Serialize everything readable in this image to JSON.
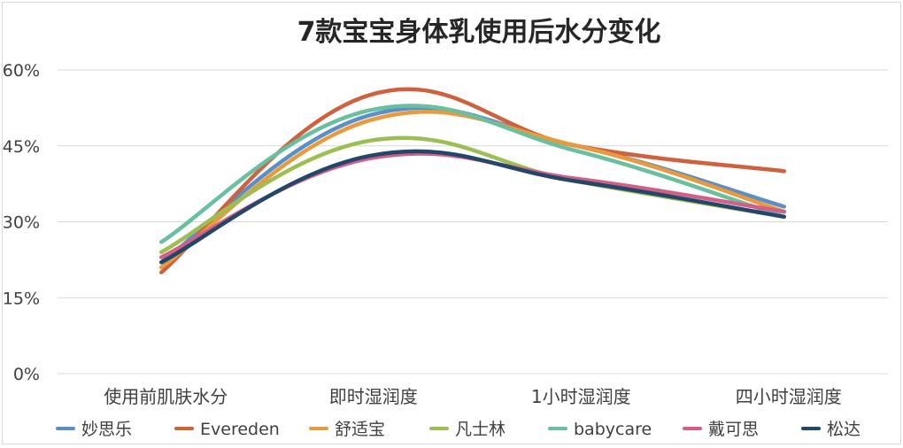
{
  "chart_data": {
    "type": "line",
    "title": "7款宝宝身体乳使用后水分变化",
    "xlabel": "",
    "ylabel": "",
    "categories": [
      "使用前肌肤水分",
      "即时湿润度",
      "1小时湿润度",
      "四小时湿润度"
    ],
    "y_ticks": [
      "0%",
      "15%",
      "30%",
      "45%",
      "60%"
    ],
    "ylim": [
      0,
      60
    ],
    "grid": true,
    "legend_position": "bottom",
    "smooth": true,
    "series": [
      {
        "name": "妙思乐",
        "color": "#5B8FC7",
        "values": [
          22,
          51,
          45,
          33
        ]
      },
      {
        "name": "Evereden",
        "color": "#D0613F",
        "values": [
          20,
          55,
          45,
          40
        ]
      },
      {
        "name": "舒适宝",
        "color": "#E89A3C",
        "values": [
          21,
          50,
          45,
          32
        ]
      },
      {
        "name": "凡士林",
        "color": "#9DBE52",
        "values": [
          24,
          46,
          38,
          31
        ]
      },
      {
        "name": "babycare",
        "color": "#68C0A0",
        "values": [
          26,
          52,
          44,
          31
        ]
      },
      {
        "name": "戴可思",
        "color": "#D35E86",
        "values": [
          23,
          42.5,
          38.5,
          32
        ]
      },
      {
        "name": "松达",
        "color": "#23466B",
        "values": [
          22,
          43,
          38,
          31
        ]
      }
    ]
  }
}
